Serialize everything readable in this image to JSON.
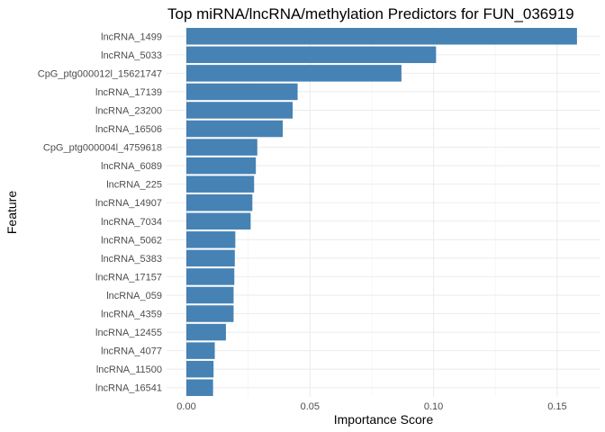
{
  "chart_data": {
    "type": "bar",
    "orientation": "horizontal",
    "title": "Top miRNA/lncRNA/methylation Predictors for FUN_036919",
    "xlabel": "Importance Score",
    "ylabel": "Feature",
    "xlim": [
      0,
      0.165
    ],
    "x_ticks": [
      0.0,
      0.05,
      0.1,
      0.15
    ],
    "x_tick_labels": [
      "0.00",
      "0.05",
      "0.10",
      "0.15"
    ],
    "grid": true,
    "bar_color": "#4682b4",
    "categories": [
      "lncRNA_1499",
      "lncRNA_5033",
      "CpG_ptg000012l_15621747",
      "lncRNA_17139",
      "lncRNA_23200",
      "lncRNA_16506",
      "CpG_ptg000004l_4759618",
      "lncRNA_6089",
      "lncRNA_225",
      "lncRNA_14907",
      "lncRNA_7034",
      "lncRNA_5062",
      "lncRNA_5383",
      "lncRNA_17157",
      "lncRNA_059",
      "lncRNA_4359",
      "lncRNA_12455",
      "lncRNA_4077",
      "lncRNA_11500",
      "lncRNA_16541"
    ],
    "values": [
      0.158,
      0.101,
      0.087,
      0.045,
      0.043,
      0.039,
      0.0287,
      0.0281,
      0.0274,
      0.0267,
      0.026,
      0.0198,
      0.0196,
      0.0194,
      0.0191,
      0.0191,
      0.016,
      0.0115,
      0.011,
      0.0108
    ]
  }
}
